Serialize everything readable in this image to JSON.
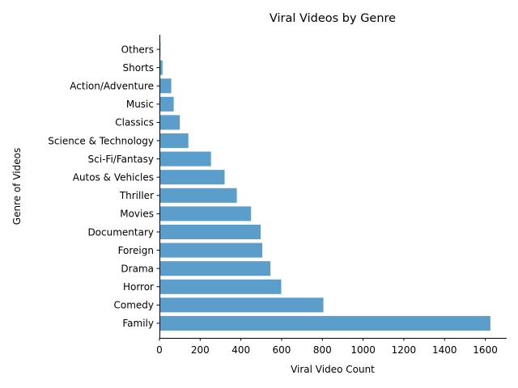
{
  "chart_data": {
    "type": "bar",
    "orientation": "horizontal",
    "title": "Viral Videos by Genre",
    "xlabel": "Viral Video Count",
    "ylabel": "Genre of Videos",
    "categories": [
      "Family",
      "Comedy",
      "Horror",
      "Drama",
      "Foreign",
      "Documentary",
      "Movies",
      "Thriller",
      "Autos & Vehicles",
      "Sci-Fi/Fantasy",
      "Science & Technology",
      "Classics",
      "Music",
      "Action/Adventure",
      "Shorts",
      "Others"
    ],
    "values": [
      1625,
      805,
      598,
      545,
      505,
      497,
      450,
      380,
      320,
      253,
      142,
      100,
      70,
      58,
      15,
      5
    ],
    "xlim": [
      0,
      1705
    ],
    "xticks": [
      0,
      200,
      400,
      600,
      800,
      1000,
      1200,
      1400,
      1600
    ],
    "bar_color": "#5b9ecb",
    "grid": false
  }
}
